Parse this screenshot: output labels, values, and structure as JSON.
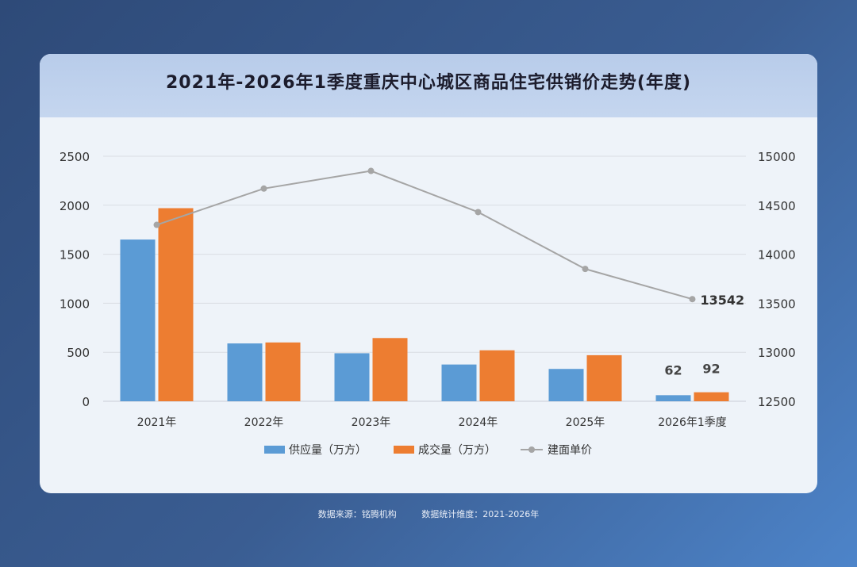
{
  "chart_data": {
    "type": "bar+line",
    "title": "2021年-2026年1季度重庆中心城区商品住宅供销价走势(年度)",
    "categories": [
      "2021年",
      "2022年",
      "2023年",
      "2024年",
      "2025年",
      "2026年1季度"
    ],
    "series": [
      {
        "name": "供应量（万方）",
        "type": "bar",
        "axis": "left",
        "color": "#5b9bd5",
        "values": [
          1650,
          590,
          490,
          375,
          330,
          62
        ]
      },
      {
        "name": "成交量（万方）",
        "type": "bar",
        "axis": "left",
        "color": "#ed7d31",
        "values": [
          1970,
          600,
          645,
          520,
          470,
          92
        ]
      },
      {
        "name": "建面单价",
        "type": "line",
        "axis": "right",
        "color": "#a5a5a5",
        "values": [
          14300,
          14670,
          14850,
          14430,
          13850,
          13542
        ]
      }
    ],
    "left_axis": {
      "min": 0,
      "max": 2500,
      "ticks": [
        "0",
        "500",
        "1000",
        "1500",
        "2000",
        "2500"
      ]
    },
    "right_axis": {
      "min": 12500,
      "max": 15000,
      "ticks": [
        "12500",
        "13000",
        "13500",
        "14000",
        "14500",
        "15000"
      ]
    },
    "data_labels": {
      "supply_last": "62",
      "deal_last": "92",
      "price_last": "13542"
    },
    "grid": true,
    "legend_position": "bottom"
  },
  "footer": {
    "source": "数据来源：铭腾机构",
    "dimension": "数据统计维度：2021-2026年"
  }
}
